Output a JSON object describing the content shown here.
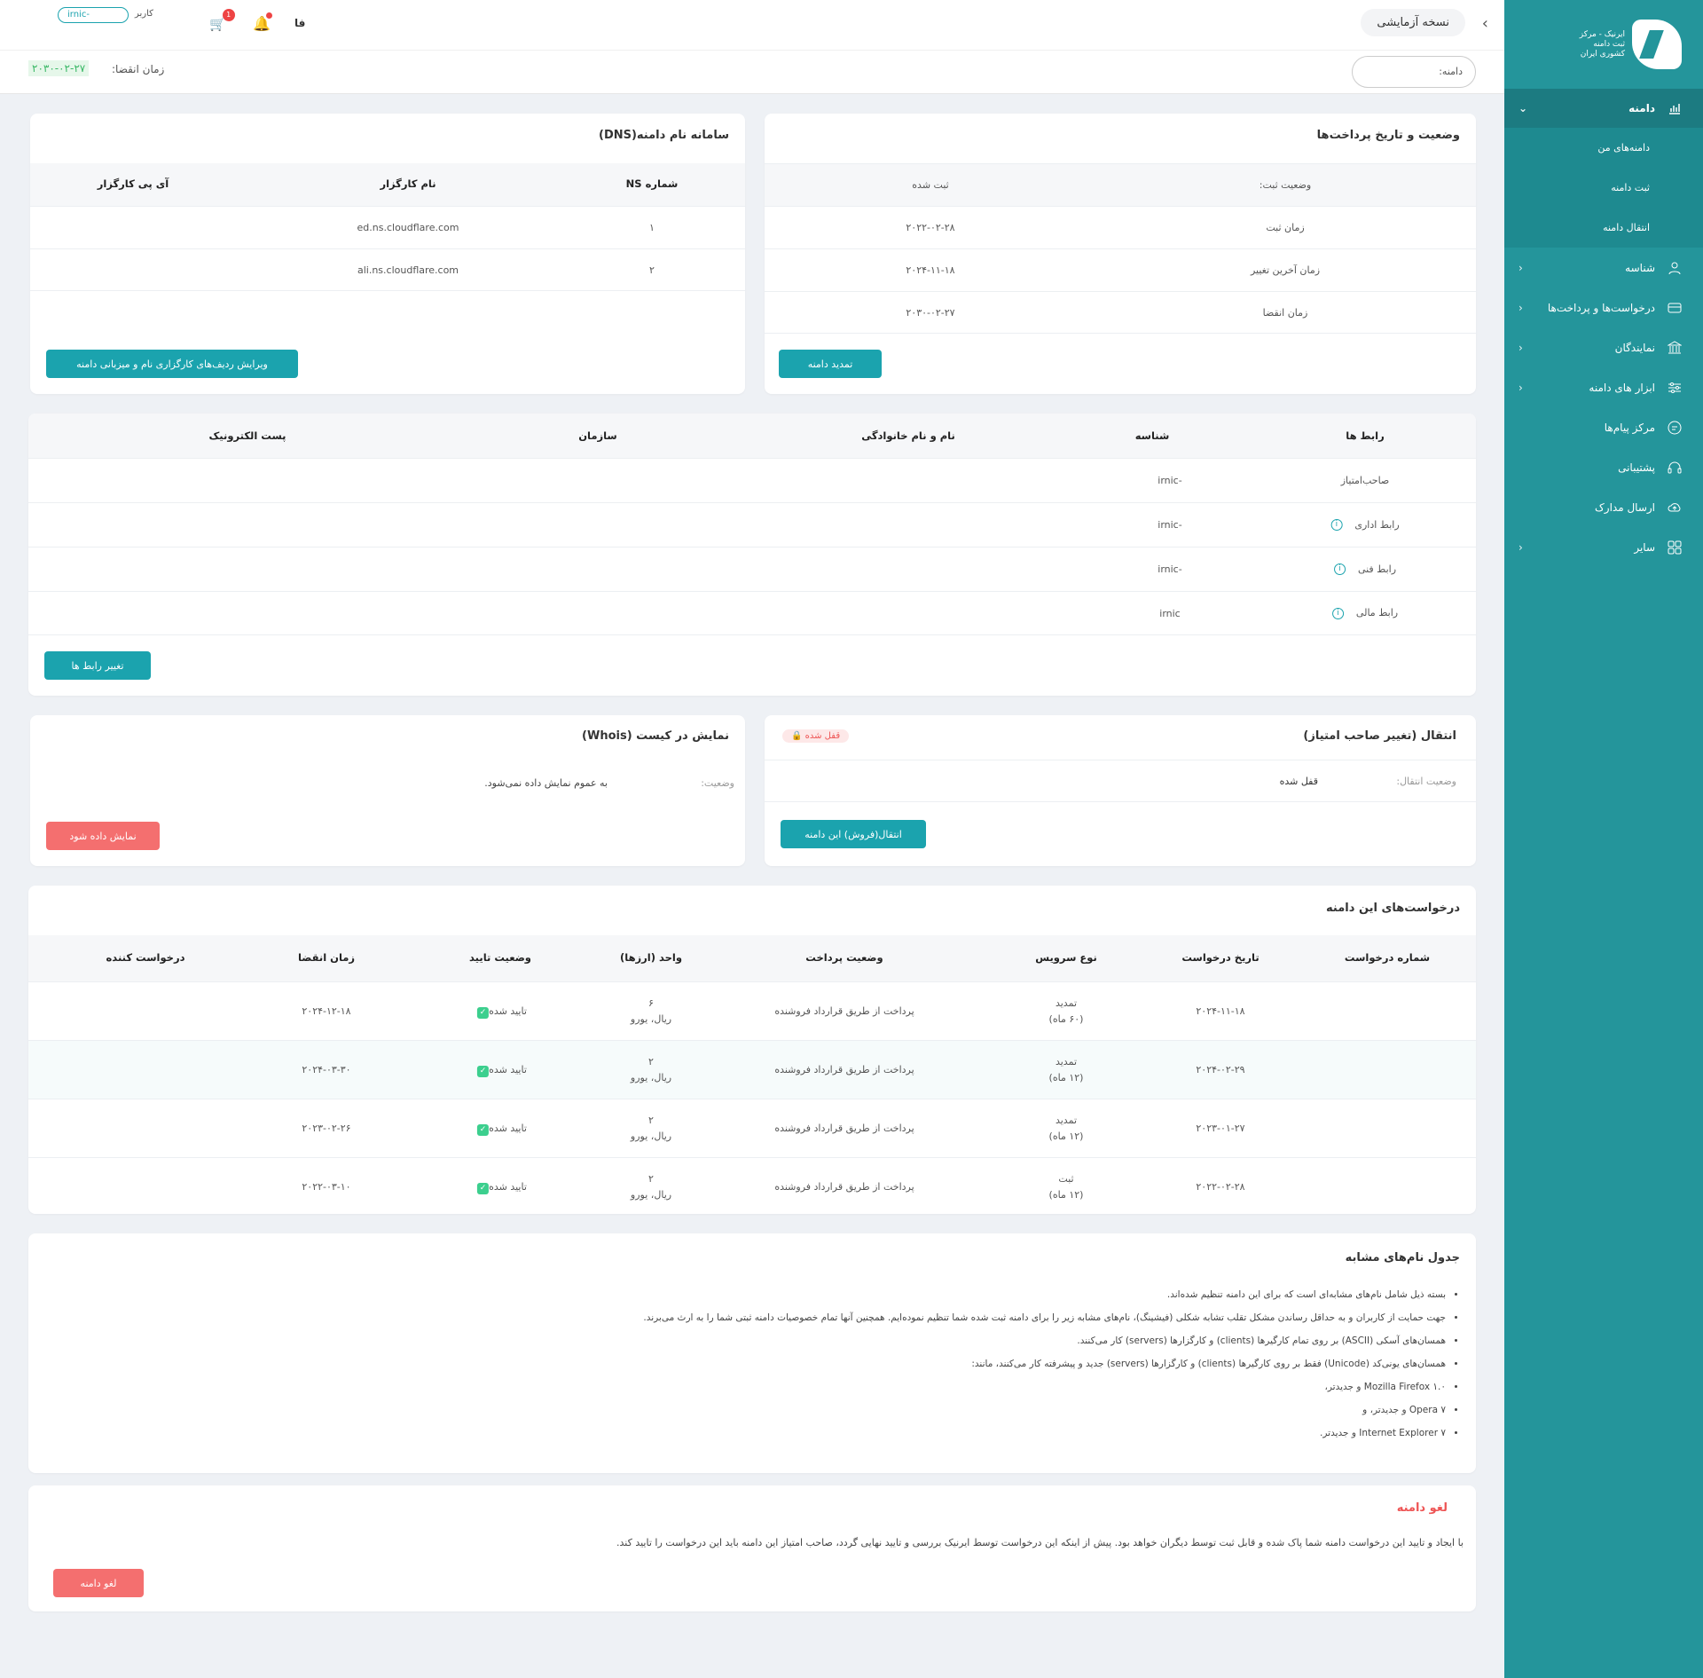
{
  "sidebar": {
    "logo_text": "ایرنیک - مرکز ثبت دامنه کشوری ایران",
    "items": [
      {
        "label": "دامنه",
        "icon": "chart-icon"
      },
      {
        "label": "دامنه‌های من"
      },
      {
        "label": "ثبت دامنه"
      },
      {
        "label": "انتقال دامنه"
      },
      {
        "label": "شناسه",
        "icon": "user-icon"
      },
      {
        "label": "درخواست‌ها و پرداخت‌ها",
        "icon": "card-icon"
      },
      {
        "label": "نمایندگان",
        "icon": "bank-icon"
      },
      {
        "label": "ابزار های دامنه",
        "icon": "sliders-icon"
      },
      {
        "label": "مرکز پیام‌ها",
        "icon": "message-icon"
      },
      {
        "label": "پشتیبانی",
        "icon": "headset-icon"
      },
      {
        "label": "ارسال مدارک",
        "icon": "upload-icon"
      },
      {
        "label": "سایر",
        "icon": "grid-icon"
      }
    ]
  },
  "topbar": {
    "version_label": "نسخه آزمایشی",
    "lang": "فا",
    "cart_count": "1",
    "user_label": "کاربر",
    "user_value": "-irnic"
  },
  "subbar": {
    "domain_label": "دامنه:",
    "expiry_label": "زمان انقضا:",
    "expiry_value": "۲۰۳۰-۰۲-۲۷"
  },
  "payment": {
    "title": "وضعیت و تاریخ پرداخت‌ها",
    "rows": [
      {
        "label": "وضعیت ثبت:",
        "value": "ثبت شده"
      },
      {
        "label": "زمان ثبت",
        "value": "۲۰۲۲-۰۲-۲۸"
      },
      {
        "label": "زمان آخرین تغییر",
        "value": "۲۰۲۴-۱۱-۱۸"
      },
      {
        "label": "زمان انقضا",
        "value": "۲۰۳۰-۰۲-۲۷"
      }
    ],
    "button": "تمدید دامنه"
  },
  "dns": {
    "title": "سامانه نام دامنه(DNS)",
    "headers": [
      "شماره NS",
      "نام کارگزار",
      "آی پی کارگزار"
    ],
    "rows": [
      {
        "num": "۱",
        "name": "ed.ns.cloudflare.com"
      },
      {
        "num": "۲",
        "name": "ali.ns.cloudflare.com"
      }
    ],
    "button": "ویرایش ردیف‌های کارگزاری نام و میزبانی دامنه"
  },
  "contacts": {
    "headers": [
      "رابط ها",
      "شناسه",
      "نام و نام خانوادگی",
      "سازمان",
      "پست الکترونیک"
    ],
    "rows": [
      {
        "role": "صاحب‌امتیاز",
        "id": "-irnic"
      },
      {
        "role": "رابط اداری",
        "id": "-irnic"
      },
      {
        "role": "رابط فنی",
        "id": "-irnic"
      },
      {
        "role": "رابط مالی",
        "id": "irnic"
      }
    ],
    "button": "تغییر رابط ها"
  },
  "transfer": {
    "title": "انتقال (تغییر صاحب امتیاز)",
    "badge": "قفل شده",
    "status_label": "وضعیت انتقال:",
    "status_value": "قفل شده",
    "button": "انتقال(فروش) این دامنه"
  },
  "whois": {
    "title": "نمایش در کیست (Whois)",
    "status_label": "وضعیت:",
    "status_value": "به عموم نمایش داده نمی‌شود.",
    "button": "نمایش داده شود"
  },
  "requests": {
    "title": "درخواست‌های این دامنه",
    "headers": [
      "شماره درخواست",
      "تاریخ درخواست",
      "نوع سرویس",
      "وضعیت پرداخت",
      "واحد (ارزها)",
      "وضعیت تایید",
      "زمان انقضا",
      "درخواست کننده"
    ],
    "rows": [
      {
        "date": "۲۰۲۴-۱۱-۱۸",
        "service": "تمدید",
        "period": "(۶۰ ماه)",
        "payment": "پرداخت از طریق قرارداد فروشنده",
        "unit": "۶",
        "currency": "ریال، یورو",
        "status": "تایید شده",
        "expiry": "۲۰۲۴-۱۲-۱۸"
      },
      {
        "date": "۲۰۲۴-۰۲-۲۹",
        "service": "تمدید",
        "period": "(۱۲ ماه)",
        "payment": "پرداخت از طریق قرارداد فروشنده",
        "unit": "۲",
        "currency": "ریال، یورو",
        "status": "تایید شده",
        "expiry": "۲۰۲۴-۰۳-۳۰"
      },
      {
        "date": "۲۰۲۳-۰۱-۲۷",
        "service": "تمدید",
        "period": "(۱۲ ماه)",
        "payment": "پرداخت از طریق قرارداد فروشنده",
        "unit": "۲",
        "currency": "ریال، یورو",
        "status": "تایید شده",
        "expiry": "۲۰۲۳-۰۲-۲۶"
      },
      {
        "date": "۲۰۲۲-۰۲-۲۸",
        "service": "ثبت",
        "period": "(۱۲ ماه)",
        "payment": "پرداخت از طریق قرارداد فروشنده",
        "unit": "۲",
        "currency": "ریال، یورو",
        "status": "تایید شده",
        "expiry": "۲۰۲۲-۰۳-۱۰"
      }
    ]
  },
  "similar": {
    "title": "جدول نام‌های مشابه",
    "items": [
      "بسته ذیل شامل نام‌های مشابه‌ای است که برای این دامنه تنظیم شده‌اند.",
      "جهت حمایت از کاربران و به حداقل رساندن مشکل تقلب تشابه شکلی (فیشینگ)، نام‌های مشابه زیر را برای دامنه ثبت شده شما تنظیم نموده‌ایم. همچنین آنها تمام خصوصیات دامنه ثبتی شما را به ارث می‌برند.",
      "همسان‌های آسکی (ASCII) بر روی تمام کارگیرها (clients) و کارگزارها (servers) کار می‌کنند.",
      "همسان‌های یونی‌کد (Unicode) فقط بر روی کارگیرها (clients) و کارگزارها (servers) جدید و پیشرفته کار می‌کنند، مانند:",
      "Mozilla Firefox ۱.۰ و جدیدتر،",
      "Opera ۷ و جدیدتر، و",
      "Internet Explorer ۷ و جدیدتر."
    ]
  },
  "cancel": {
    "title": "لغو دامنه",
    "text": "با ایجاد و تایید این درخواست دامنه شما پاک شده و قابل ثبت توسط دیگران خواهد بود. پیش از اینکه این درخواست توسط ایرنیک بررسی و تایید نهایی گردد، صاحب امتیاز این دامنه باید این درخواست را تایید کند.",
    "button": "لغو دامنه"
  }
}
